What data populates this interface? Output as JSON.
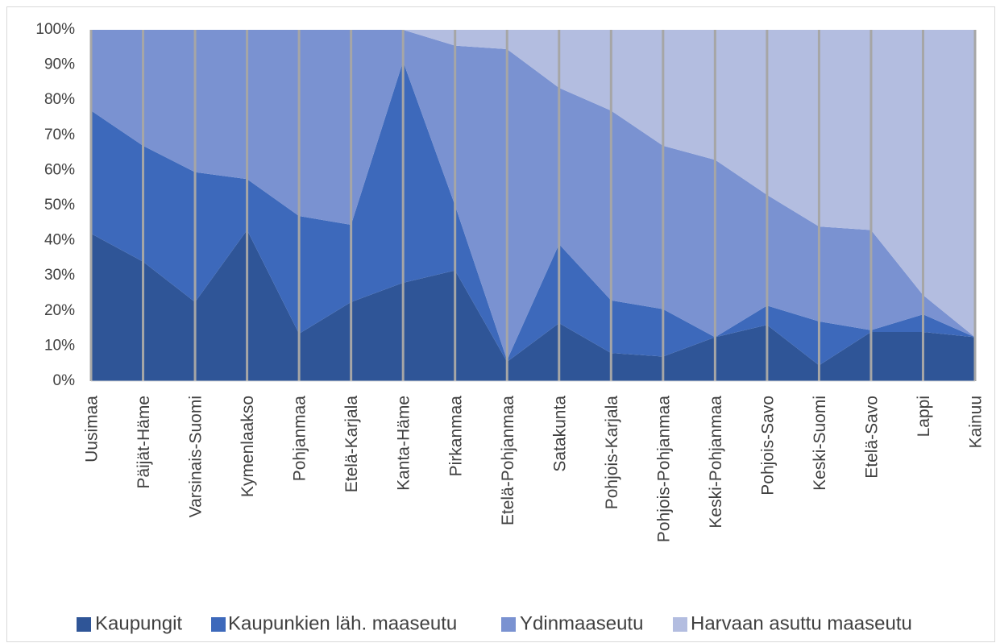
{
  "chart_data": {
    "type": "stacked_area",
    "categories": [
      "Uusimaa",
      "Päijät-Häme",
      "Varsinais-Suomi",
      "Kymenlaakso",
      "Pohjanmaa",
      "Etelä-Karjala",
      "Kanta-Häme",
      "Pirkanmaa",
      "Etelä-Pohjanmaa",
      "Satakunta",
      "Pohjois-Karjala",
      "Pohjois-Pohjanmaa",
      "Keski-Pohjanmaa",
      "Pohjois-Savo",
      "Keski-Suomi",
      "Etelä-Savo",
      "Lappi",
      "Kainuu"
    ],
    "series": [
      {
        "name": "Kaupungit",
        "color": "#2f5597",
        "values": [
          42,
          34,
          22.5,
          43,
          13.5,
          22.5,
          28,
          31.5,
          5.5,
          16.5,
          8,
          7,
          12.5,
          16,
          4.5,
          14,
          14,
          12.5
        ]
      },
      {
        "name": "Kaupunkien läh. maaseutu",
        "color": "#3d69bb",
        "values": [
          35,
          33,
          37,
          14.5,
          33.5,
          22,
          63,
          18.5,
          0.5,
          22.5,
          15,
          13.5,
          0,
          5.5,
          12.5,
          0.5,
          5,
          0
        ]
      },
      {
        "name": "Ydinmaaseutu",
        "color": "#7a92d1",
        "values": [
          23,
          33,
          40.5,
          42.5,
          53,
          55.5,
          9,
          45.5,
          88.5,
          44.5,
          54,
          46.5,
          50.5,
          31.5,
          27,
          28.5,
          5.5,
          0
        ]
      },
      {
        "name": "Harvaan asuttu maaseutu",
        "color": "#b3bde0",
        "values": [
          0,
          0,
          0,
          0,
          0,
          0,
          0,
          4.5,
          5.5,
          16.5,
          23,
          33,
          37,
          47,
          56,
          57,
          75.5,
          87.5
        ]
      }
    ],
    "ylim": [
      0,
      100
    ],
    "yticks": [
      {
        "value": 0,
        "label": "0%"
      },
      {
        "value": 10,
        "label": "10%"
      },
      {
        "value": 20,
        "label": "20%"
      },
      {
        "value": 30,
        "label": "30%"
      },
      {
        "value": 40,
        "label": "40%"
      },
      {
        "value": 50,
        "label": "50%"
      },
      {
        "value": 60,
        "label": "60%"
      },
      {
        "value": 70,
        "label": "70%"
      },
      {
        "value": 80,
        "label": "80%"
      },
      {
        "value": 90,
        "label": "90%"
      },
      {
        "value": 100,
        "label": "100%"
      }
    ],
    "legend": "bottom"
  }
}
